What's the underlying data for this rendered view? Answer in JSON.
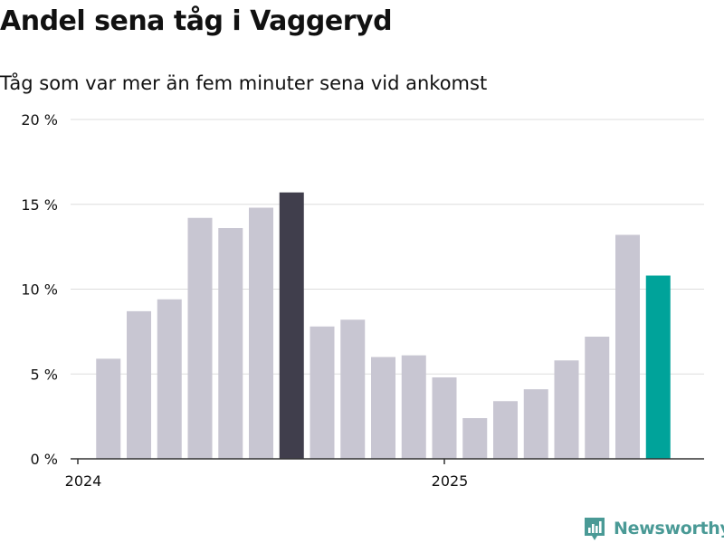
{
  "header": {
    "title": "Andel sena tåg i Vaggeryd",
    "subtitle": "Tåg som var mer än fem minuter sena vid ankomst"
  },
  "brand": {
    "name": "Newsworthy",
    "icon": "newsworthy-logo-icon",
    "color": "#4a9a96"
  },
  "colors": {
    "bar_default": "#c8c6d2",
    "bar_highlight_dark": "#403e4c",
    "bar_highlight_teal": "#00a39a",
    "gridline": "#dddddd",
    "axis": "#333333",
    "text": "#111111"
  },
  "chart_data": {
    "type": "bar",
    "title": "Andel sena tåg i Vaggeryd",
    "subtitle": "Tåg som var mer än fem minuter sena vid ankomst",
    "xlabel": "",
    "ylabel": "",
    "ylim": [
      0,
      20
    ],
    "y_ticks": [
      0,
      5,
      10,
      15,
      20
    ],
    "y_tick_labels": [
      "0 %",
      "5 %",
      "10 %",
      "15 %",
      "20 %"
    ],
    "x_tick_labels": [
      {
        "label": "2024",
        "month": "2024-01"
      },
      {
        "label": "2025",
        "month": "2025-01"
      }
    ],
    "x_range": [
      "2024-01",
      "2025-09"
    ],
    "grid": true,
    "legend": "none",
    "categories": [
      "2024-02",
      "2024-03",
      "2024-04",
      "2024-05",
      "2024-06",
      "2024-07",
      "2024-08",
      "2024-09",
      "2024-10",
      "2024-11",
      "2024-12",
      "2025-01",
      "2025-02",
      "2025-03",
      "2025-04",
      "2025-05",
      "2025-06",
      "2025-07",
      "2025-08"
    ],
    "values": [
      5.9,
      8.7,
      9.4,
      14.2,
      13.6,
      14.8,
      15.7,
      7.8,
      8.2,
      6.0,
      6.1,
      4.8,
      2.4,
      3.4,
      4.1,
      5.8,
      7.2,
      13.2,
      10.8
    ],
    "highlight": {
      "2024-08": "dark",
      "2025-08": "teal"
    }
  }
}
